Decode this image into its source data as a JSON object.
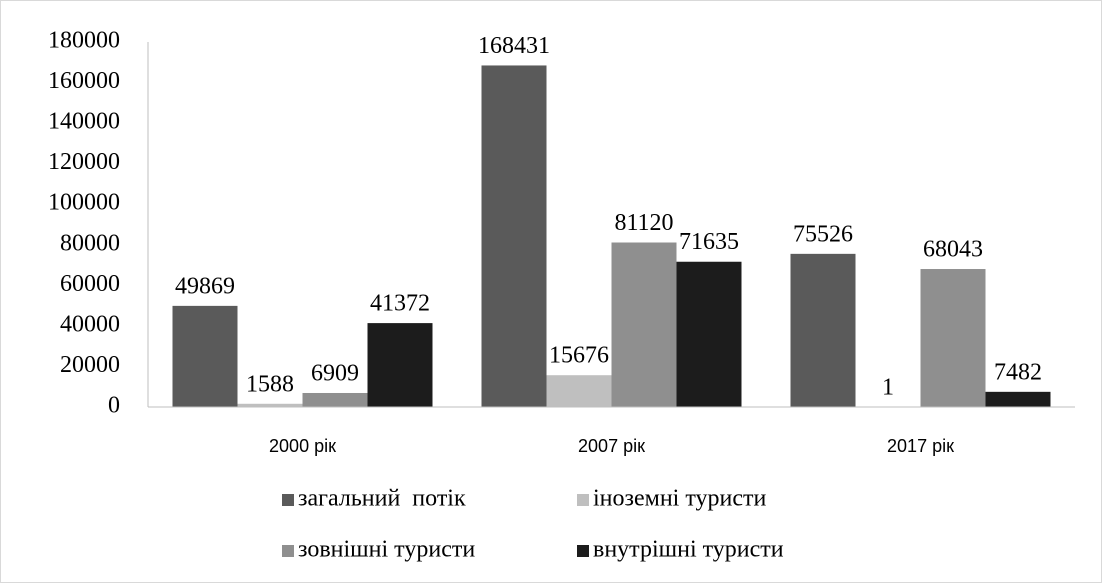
{
  "chart_data": {
    "type": "bar",
    "categories": [
      "2000 рік",
      "2007 рік",
      "2017 рік"
    ],
    "series": [
      {
        "name": "загальний  потік",
        "color": "#5a5a5a",
        "values": [
          49869,
          168431,
          75526
        ]
      },
      {
        "name": "іноземні туристи",
        "color": "#bfbfbf",
        "values": [
          1588,
          15676,
          1
        ]
      },
      {
        "name": "зовнішні туристи",
        "color": "#8f8f8f",
        "values": [
          6909,
          81120,
          68043
        ]
      },
      {
        "name": "внутрішні туристи",
        "color": "#1c1c1c",
        "values": [
          41372,
          71635,
          7482
        ]
      }
    ],
    "ylim": [
      0,
      180000
    ],
    "yticks": [
      0,
      20000,
      40000,
      60000,
      80000,
      100000,
      120000,
      140000,
      160000,
      180000
    ],
    "legend": "bottom"
  }
}
